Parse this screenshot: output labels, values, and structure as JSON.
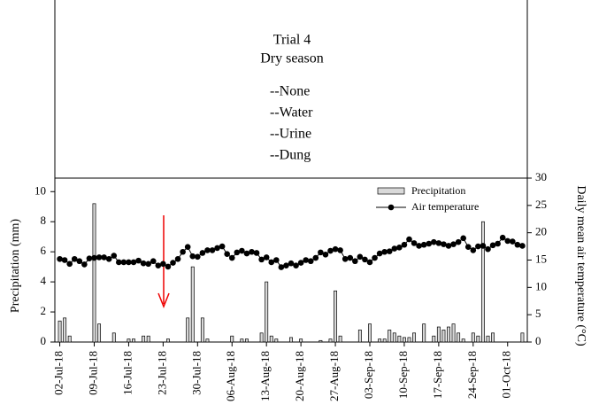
{
  "chart_data": {
    "type": "bar-line",
    "title": [
      "Trial 4",
      "Dry season"
    ],
    "annotations": [
      "--None",
      "--Water",
      "--Urine",
      "--Dung"
    ],
    "ylabel": "Precipitation (mm)",
    "y2label": "Daily mean air temperature (°C)",
    "ylim": [
      0,
      10.9
    ],
    "yticks": [
      0,
      2,
      4,
      6,
      8,
      10
    ],
    "y2lim": [
      0,
      30
    ],
    "y2ticks": [
      0,
      5,
      10,
      15,
      20,
      25,
      30
    ],
    "xlim": [
      "2018-07-01",
      "2018-10-05"
    ],
    "xticks": [
      {
        "value": "2018-07-02",
        "label": "02-Jul-18"
      },
      {
        "value": "2018-07-09",
        "label": "09-Jul-18"
      },
      {
        "value": "2018-07-16",
        "label": "16-Jul-18"
      },
      {
        "value": "2018-07-23",
        "label": "23-Jul-18"
      },
      {
        "value": "2018-07-30",
        "label": "30-Jul-18"
      },
      {
        "value": "2018-08-06",
        "label": "06-Aug-18"
      },
      {
        "value": "2018-08-13",
        "label": "13-Aug-18"
      },
      {
        "value": "2018-08-20",
        "label": "20-Aug-18"
      },
      {
        "value": "2018-08-27",
        "label": "27-Aug-18"
      },
      {
        "value": "2018-09-03",
        "label": "03-Sep-18"
      },
      {
        "value": "2018-09-10",
        "label": "10-Sep-18"
      },
      {
        "value": "2018-09-17",
        "label": "17-Sep-18"
      },
      {
        "value": "2018-09-24",
        "label": "24-Sep-18"
      },
      {
        "value": "2018-10-01",
        "label": "01-Oct-18"
      }
    ],
    "legend": "upper right",
    "x": [
      "2018-07-02",
      "2018-07-03",
      "2018-07-04",
      "2018-07-05",
      "2018-07-06",
      "2018-07-07",
      "2018-07-08",
      "2018-07-09",
      "2018-07-10",
      "2018-07-11",
      "2018-07-12",
      "2018-07-13",
      "2018-07-14",
      "2018-07-15",
      "2018-07-16",
      "2018-07-17",
      "2018-07-18",
      "2018-07-19",
      "2018-07-20",
      "2018-07-21",
      "2018-07-22",
      "2018-07-23",
      "2018-07-24",
      "2018-07-25",
      "2018-07-26",
      "2018-07-27",
      "2018-07-28",
      "2018-07-29",
      "2018-07-30",
      "2018-07-31",
      "2018-08-01",
      "2018-08-02",
      "2018-08-03",
      "2018-08-04",
      "2018-08-05",
      "2018-08-06",
      "2018-08-07",
      "2018-08-08",
      "2018-08-09",
      "2018-08-10",
      "2018-08-11",
      "2018-08-12",
      "2018-08-13",
      "2018-08-14",
      "2018-08-15",
      "2018-08-16",
      "2018-08-17",
      "2018-08-18",
      "2018-08-19",
      "2018-08-20",
      "2018-08-21",
      "2018-08-22",
      "2018-08-23",
      "2018-08-24",
      "2018-08-25",
      "2018-08-26",
      "2018-08-27",
      "2018-08-28",
      "2018-08-29",
      "2018-08-30",
      "2018-08-31",
      "2018-09-01",
      "2018-09-02",
      "2018-09-03",
      "2018-09-04",
      "2018-09-05",
      "2018-09-06",
      "2018-09-07",
      "2018-09-08",
      "2018-09-09",
      "2018-09-10",
      "2018-09-11",
      "2018-09-12",
      "2018-09-13",
      "2018-09-14",
      "2018-09-15",
      "2018-09-16",
      "2018-09-17",
      "2018-09-18",
      "2018-09-19",
      "2018-09-20",
      "2018-09-21",
      "2018-09-22",
      "2018-09-23",
      "2018-09-24",
      "2018-09-25",
      "2018-09-26",
      "2018-09-27",
      "2018-09-28",
      "2018-09-29",
      "2018-09-30",
      "2018-10-01",
      "2018-10-02",
      "2018-10-03",
      "2018-10-04"
    ],
    "series": [
      {
        "name": "Precipitation",
        "type": "bar",
        "color": "#d9d9d9",
        "values": [
          1.4,
          1.6,
          0.4,
          0,
          0,
          0,
          0,
          9.2,
          1.2,
          0,
          0,
          0.6,
          0,
          0,
          0.2,
          0.2,
          0,
          0.4,
          0.4,
          0,
          0,
          0,
          0.2,
          0,
          0,
          0,
          1.6,
          5.0,
          0,
          1.6,
          0.2,
          0,
          0,
          0,
          0,
          0.4,
          0,
          0.2,
          0.2,
          0,
          0,
          0.6,
          4.0,
          0.4,
          0.2,
          0,
          0,
          0.3,
          0,
          0.2,
          0,
          0,
          0,
          0.1,
          0,
          0.2,
          3.4,
          0.4,
          0,
          0,
          0,
          0.8,
          0,
          1.2,
          0,
          0.2,
          0.2,
          0.8,
          0.6,
          0.4,
          0.3,
          0.3,
          0.6,
          0,
          1.2,
          0,
          0.4,
          1.0,
          0.8,
          1.0,
          1.2,
          0.6,
          0.2,
          0,
          0.6,
          0.4,
          8.0,
          0.4,
          0.6,
          0,
          0,
          0,
          0,
          0,
          0.6
        ]
      },
      {
        "name": "Air temperature",
        "type": "line",
        "axis": "y2",
        "color": "#000000",
        "values": [
          15.2,
          15.0,
          14.3,
          15.2,
          14.8,
          14.2,
          15.3,
          15.4,
          15.5,
          15.5,
          15.2,
          15.8,
          14.6,
          14.6,
          14.6,
          14.6,
          14.9,
          14.4,
          14.3,
          14.8,
          14.0,
          14.3,
          13.8,
          14.5,
          15.2,
          16.5,
          17.4,
          15.7,
          15.6,
          16.3,
          16.8,
          16.8,
          17.2,
          17.5,
          16.1,
          15.4,
          16.4,
          16.7,
          16.2,
          16.5,
          16.3,
          15.1,
          15.5,
          14.6,
          15.0,
          13.7,
          14.0,
          14.4,
          14.0,
          14.5,
          15.0,
          14.8,
          15.4,
          16.4,
          16.0,
          16.7,
          17.0,
          16.8,
          15.2,
          15.4,
          14.8,
          15.6,
          15.1,
          14.6,
          15.4,
          16.2,
          16.5,
          16.6,
          17.1,
          17.3,
          17.8,
          18.8,
          18.1,
          17.6,
          17.8,
          18.0,
          18.3,
          18.1,
          17.9,
          17.6,
          17.9,
          18.3,
          19.0,
          17.4,
          16.8,
          17.5,
          17.6,
          17.0,
          17.7,
          18.0,
          19.1,
          18.5,
          18.4,
          17.8,
          17.6
        ]
      }
    ]
  }
}
